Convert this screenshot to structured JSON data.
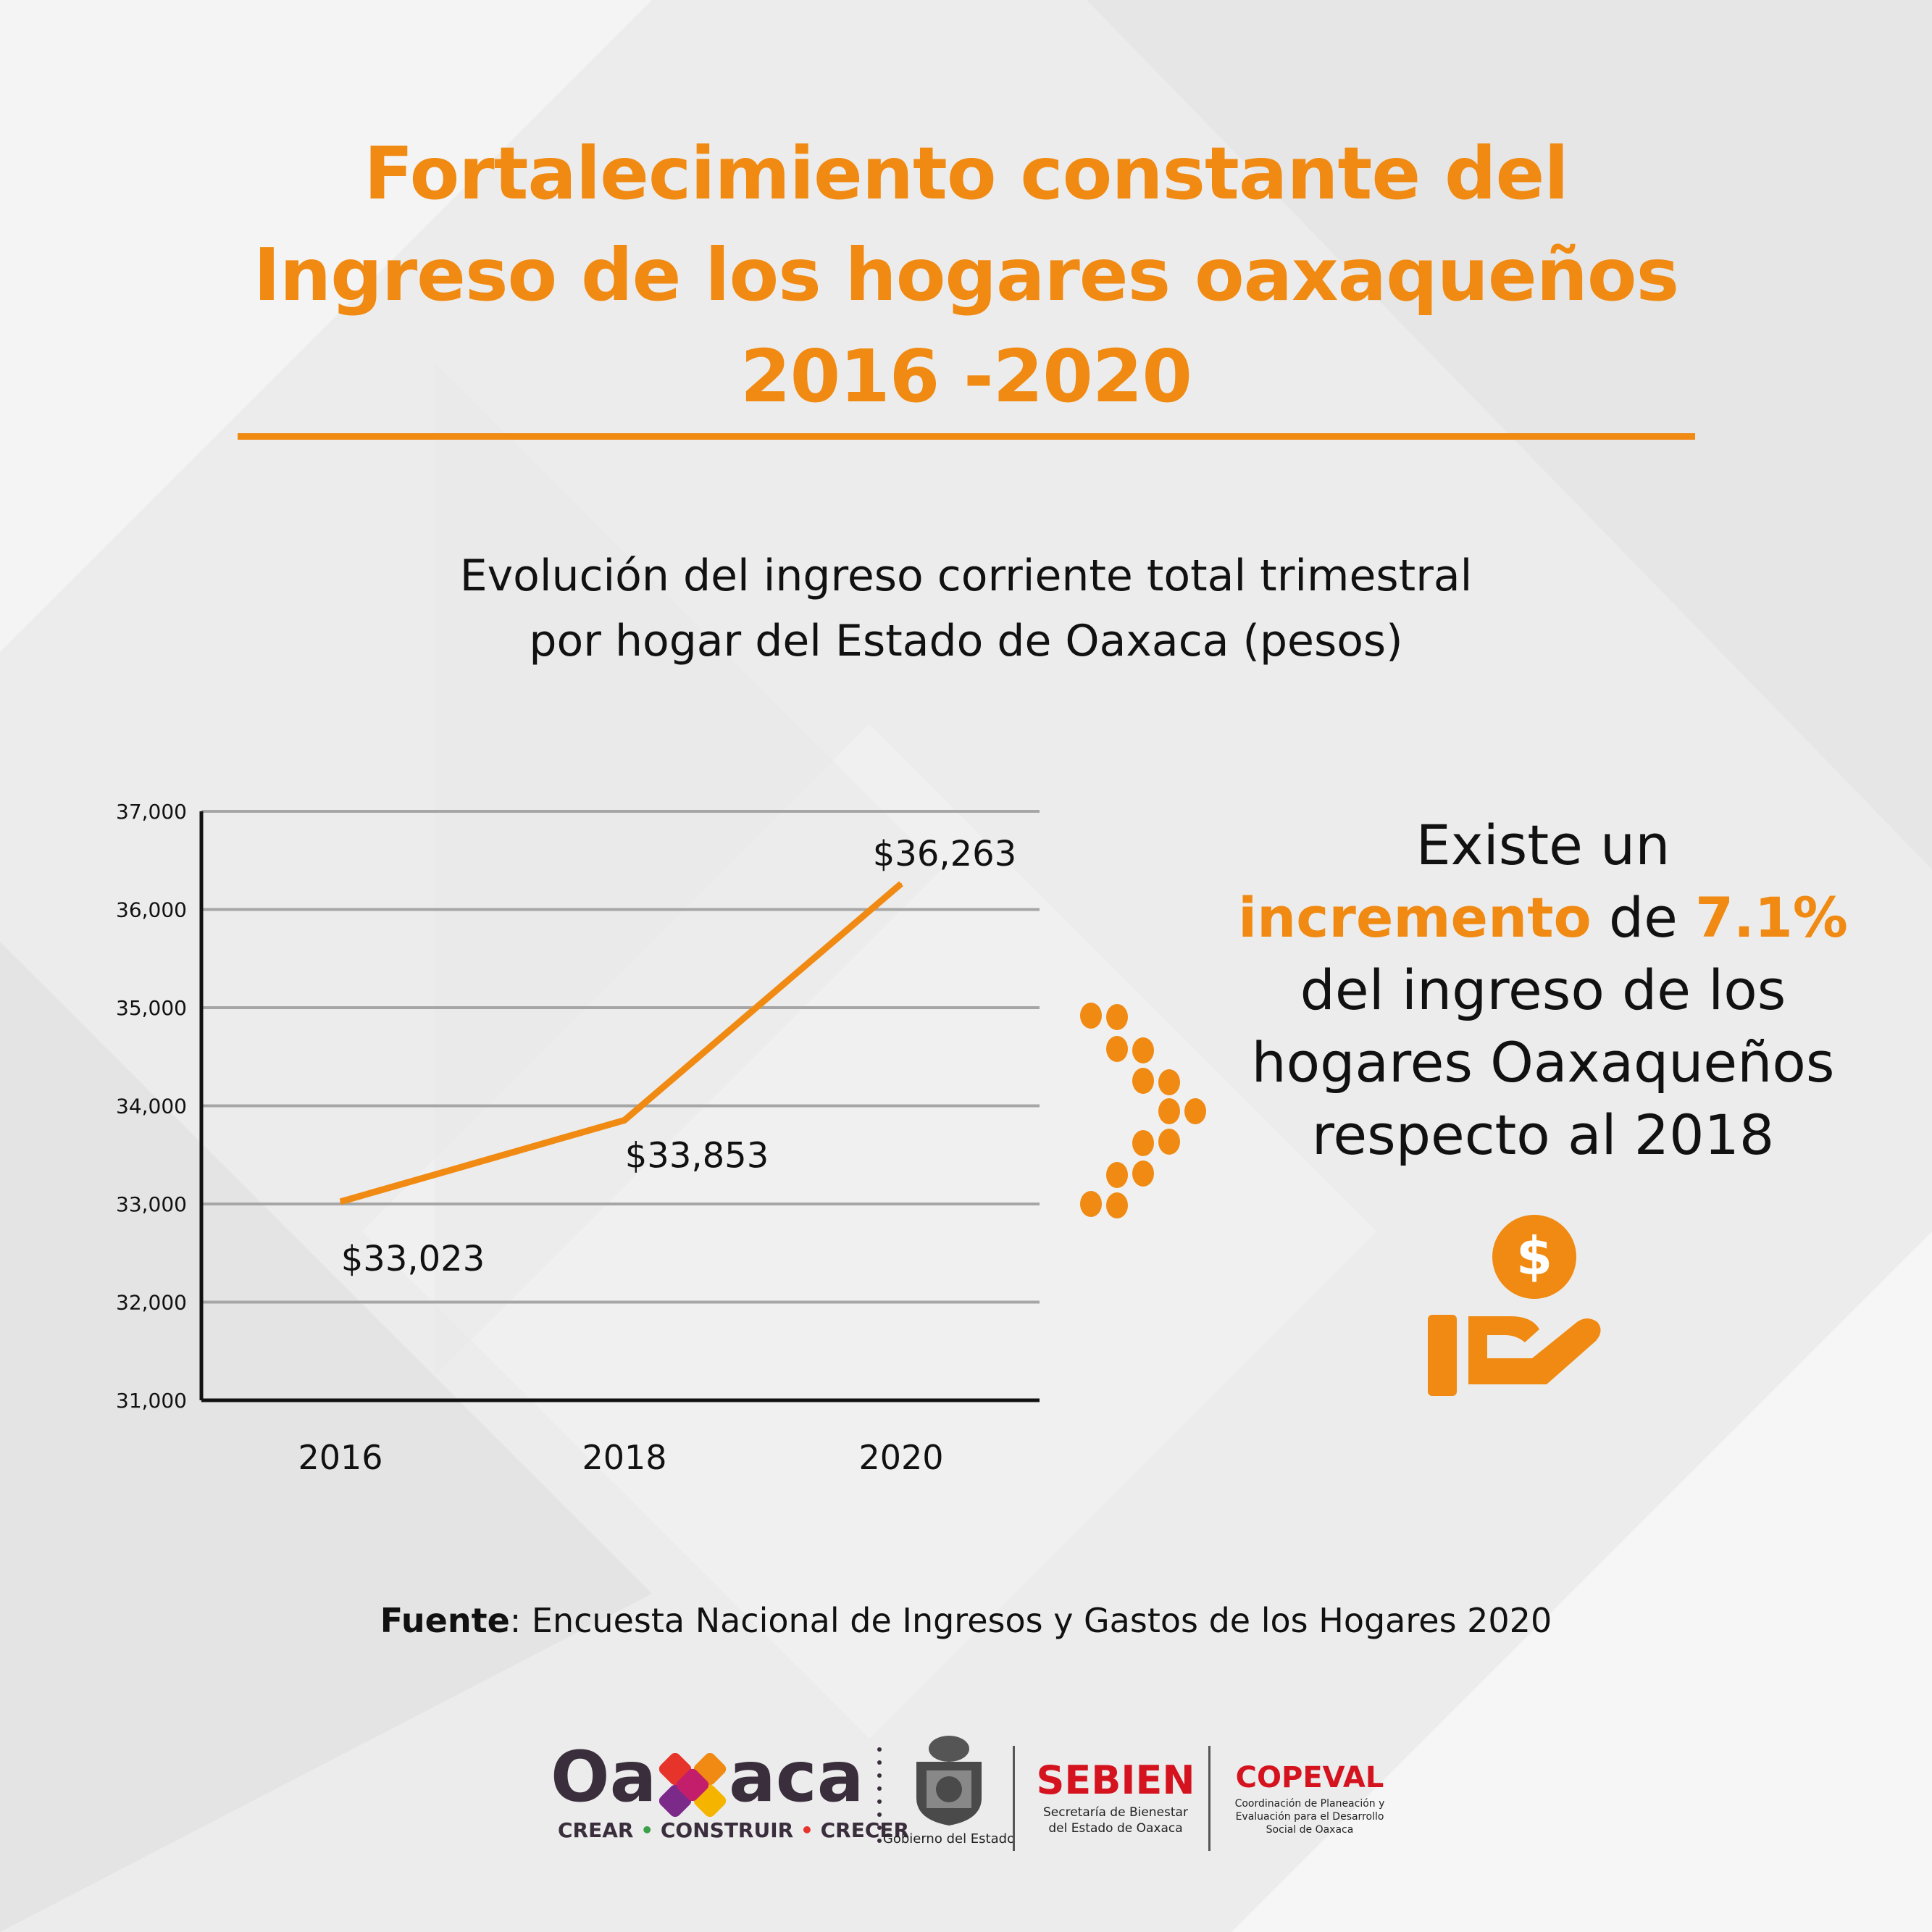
{
  "title": {
    "line1": "Fortalecimiento constante del",
    "line2": "Ingreso de los hogares oaxaqueños",
    "line3": "2016 -2020"
  },
  "subtitle": {
    "line1": "Evolución del ingreso corriente total trimestral",
    "line2": "por hogar del Estado de Oaxaca (pesos)"
  },
  "chart_data": {
    "type": "line",
    "title": "Evolución del ingreso corriente total trimestral por hogar del Estado de Oaxaca (pesos)",
    "categories": [
      "2016",
      "2018",
      "2020"
    ],
    "values": [
      33023,
      33853,
      36263
    ],
    "data_labels": [
      "$33,023",
      "$33,853",
      "$36,263"
    ],
    "ylim": [
      31000,
      37000
    ],
    "yticks": [
      31000,
      32000,
      33000,
      34000,
      35000,
      36000,
      37000
    ],
    "ytick_labels": [
      "31,000",
      "32,000",
      "33,000",
      "34,000",
      "35,000",
      "36,000",
      "37,000"
    ],
    "grid": true,
    "line_color": "#f08a12",
    "xlabel": "",
    "ylabel": ""
  },
  "callout": {
    "line1": "Existe un",
    "highlight_word": "incremento",
    "connector": " de ",
    "percent": "7.1%",
    "line3": "del ingreso de los",
    "line4": "hogares Oaxaqueños",
    "line5": "respecto al 2018",
    "icon": "hand-money-icon"
  },
  "source": {
    "label": "Fuente",
    "text": ": Encuesta Nacional de Ingresos y Gastos de los Hogares 2020"
  },
  "footer": {
    "oaxaca_left": "Oa",
    "oaxaca_right": "aca",
    "slogan_1": "CREAR",
    "slogan_2": "CONSTRUIR",
    "slogan_3": "CRECER",
    "gobierno": "Gobierno del Estado",
    "sebien": "SEBIEN",
    "sebien_sub1": "Secretaría de Bienestar",
    "sebien_sub2": "del Estado de Oaxaca",
    "copeval": "COPEVAL",
    "copeval_sub1": "Coordinación de Planeación y",
    "copeval_sub2": "Evaluación para el Desarrollo",
    "copeval_sub3": "Social de Oaxaca"
  },
  "colors": {
    "accent": "#f08a12",
    "text": "#111111",
    "logo_dark": "#3a2e3d",
    "red": "#d4131f"
  }
}
